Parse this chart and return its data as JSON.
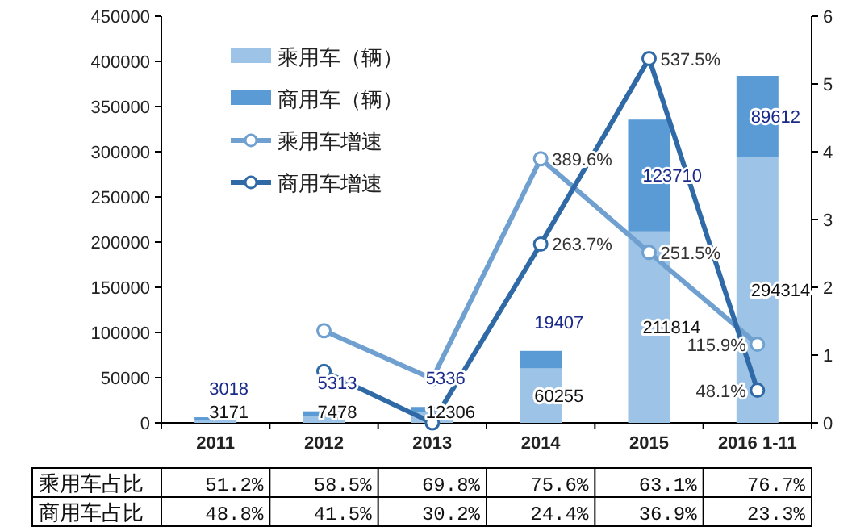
{
  "chart_data": {
    "type": "bar",
    "stacked": true,
    "categories": [
      "2011",
      "2012",
      "2013",
      "2014",
      "2015",
      "2016 1-11"
    ],
    "series": [
      {
        "name": "乘用车（辆）",
        "color": "#9dc3e6",
        "values": [
          3171,
          7478,
          12306,
          60255,
          211814,
          294314
        ],
        "value_labels": [
          "3171",
          "7478",
          "12306",
          "60255",
          "211814",
          "294314"
        ]
      },
      {
        "name": "商用车（辆）",
        "color": "#5b9bd5",
        "values": [
          3018,
          5313,
          5336,
          19407,
          123710,
          89612
        ],
        "value_labels": [
          "3018",
          "5313",
          "5336",
          "19407",
          "123710",
          "89612"
        ]
      },
      {
        "name": "乘用车增速",
        "type": "line",
        "axis": "y2",
        "color": "#6fa0d0",
        "values": [
          null,
          1.36,
          0.65,
          3.896,
          2.515,
          1.159
        ],
        "value_labels": [
          null,
          null,
          null,
          "389.6%",
          "251.5%",
          "115.9%"
        ]
      },
      {
        "name": "商用车增速",
        "type": "line",
        "axis": "y2",
        "color": "#2f6aa6",
        "values": [
          null,
          0.76,
          0.0,
          2.637,
          5.375,
          0.481
        ],
        "value_labels": [
          null,
          null,
          null,
          "263.7%",
          "537.5%",
          "48.1%"
        ]
      }
    ],
    "ylim": [
      0,
      450000
    ],
    "yticks": [
      0,
      50000,
      100000,
      150000,
      200000,
      250000,
      300000,
      350000,
      400000,
      450000
    ],
    "y2lim": [
      0,
      6
    ],
    "y2ticks": [
      0,
      1,
      2,
      3,
      4,
      5,
      6
    ],
    "legend": "top left",
    "marker": "circle",
    "grid": false,
    "annotations": [
      "乘用车占比",
      "51.2%",
      "58.5%",
      "69.8%",
      "75.6%",
      "63.1%",
      "76.7%",
      "商用车占比",
      "48.8%",
      "41.5%",
      "30.2%",
      "24.4%",
      "36.9%",
      "23.3%"
    ]
  }
}
